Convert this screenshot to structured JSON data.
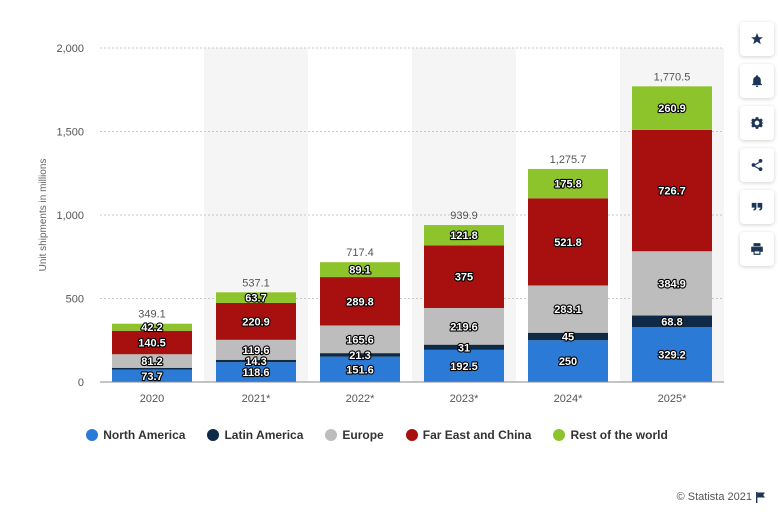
{
  "chart_data": {
    "type": "bar",
    "stacked": true,
    "categories": [
      "2020",
      "2021*",
      "2022*",
      "2023*",
      "2024*",
      "2025*"
    ],
    "series": [
      {
        "name": "North America",
        "color": "#2b7bd6",
        "values": [
          73.7,
          118.6,
          151.6,
          192.5,
          250,
          329.2
        ]
      },
      {
        "name": "Latin America",
        "color": "#0e2a47",
        "values": [
          11.4,
          14.3,
          21.3,
          31,
          45,
          68.8
        ]
      },
      {
        "name": "Europe",
        "color": "#bdbdbd",
        "values": [
          81.2,
          119.6,
          165.6,
          219.6,
          283.1,
          384.9
        ]
      },
      {
        "name": "Far East and China",
        "color": "#a80f0f",
        "values": [
          140.5,
          220.9,
          289.8,
          375,
          521.8,
          726.7
        ]
      },
      {
        "name": "Rest of the world",
        "color": "#8ec42b",
        "values": [
          42.2,
          63.7,
          89.1,
          121.8,
          175.8,
          260.9
        ]
      }
    ],
    "segment_labels": [
      [
        "73.7",
        "118.6",
        "151.6",
        "192.5",
        "250",
        "329.2"
      ],
      [
        "",
        "14.3",
        "21.3",
        "31",
        "45",
        "68.8"
      ],
      [
        "81.2",
        "119.6",
        "165.6",
        "219.6",
        "283.1",
        "384.9"
      ],
      [
        "140.5",
        "220.9",
        "289.8",
        "375",
        "521.8",
        "726.7"
      ],
      [
        "42.2",
        "63.7",
        "89.1",
        "121.8",
        "175.8",
        "260.9"
      ]
    ],
    "totals": [
      "349.1",
      "537.1",
      "717.4",
      "939.9",
      "1,275.7",
      "1,770.5"
    ],
    "ylabel": "Unit shipments in millions",
    "ylim": [
      0,
      2000
    ],
    "yticks": [
      0,
      500,
      1000,
      1500,
      2000
    ],
    "ytick_labels": [
      "0",
      "500",
      "1,000",
      "1,500",
      "2,000"
    ],
    "grid": true,
    "legend_position": "bottom"
  },
  "credit": "© Statista 2021",
  "sidebar": {
    "buttons": [
      {
        "icon": "star-icon"
      },
      {
        "icon": "bell-icon"
      },
      {
        "icon": "gear-icon"
      },
      {
        "icon": "share-icon"
      },
      {
        "icon": "quote-icon"
      },
      {
        "icon": "print-icon"
      }
    ]
  }
}
